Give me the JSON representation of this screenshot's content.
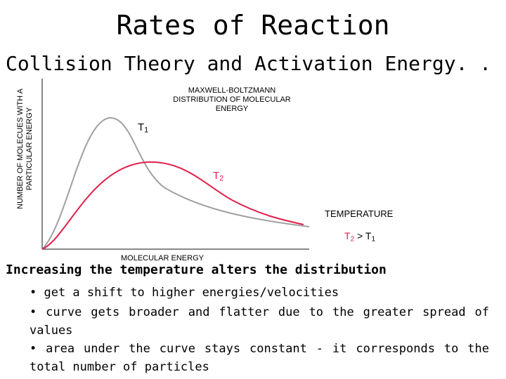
{
  "title": "Rates of Reaction",
  "subtitle": "Collision Theory and Activation Energy. . .",
  "graph": {
    "y_axis_label": "NUMBER OF MOLECUES WITH A PARTICULAR ENERGY",
    "x_axis_label": "MOLECULAR ENERGY",
    "distribution_label": "MAXWELL-BOLTZMANN DISTRIBUTION OF MOLECULAR ENERGY",
    "curve_t1_label": "T",
    "curve_t1_sub": "1",
    "curve_t2_label": "T",
    "curve_t2_sub": "2",
    "temperature_label": "TEMPERATURE",
    "comparison": {
      "left": "T",
      "left_sub": "2",
      "op": " > ",
      "right": "T",
      "right_sub": "1"
    },
    "colors": {
      "t1_curve": "#a0a0a0",
      "t2_curve": "#e0204a",
      "axis": "#606060"
    }
  },
  "text": {
    "heading": "Increasing the temperature alters the distribution",
    "bullets": [
      "• get a shift to higher energies/velocities",
      "• curve gets broader and flatter due to the greater spread of values",
      "• area under the curve stays constant - it corresponds to the total number of particles"
    ]
  }
}
